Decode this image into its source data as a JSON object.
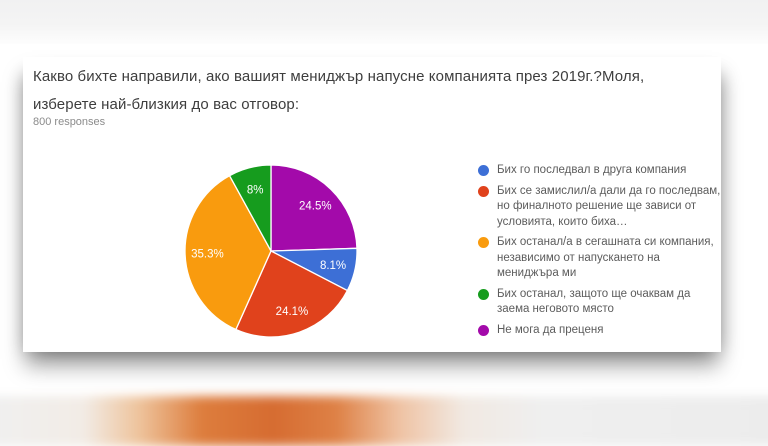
{
  "card": {
    "title": "Какво бихте направили, ако вашият мениджър напусне компанията през 2019г.?Моля, изберете най-близкия до вас отговор:",
    "responses_label": "800 responses"
  },
  "chart_data": {
    "type": "pie",
    "title": "Какво бихте направили, ако вашият мениджър напусне компанията през 2019г.?Моля, изберете най-близкия до вас отговор:",
    "subtitle": "800 responses",
    "categories": [
      "Бих го последвал в друга компания",
      "Бих се замислил/а дали да го последвам, но финалното решение ще зависи от условията, които биха…",
      "Бих останал/а в сегашната си компания, независимо от напускането на мениджъра ми",
      "Бих останал, защото ще очаквам да заема неговото място",
      "Не мога да преценя"
    ],
    "values": [
      8.1,
      24.1,
      35.3,
      8.0,
      24.5
    ],
    "slice_labels": [
      "8.1%",
      "24.1%",
      "35.3%",
      "8%",
      "24.5%"
    ],
    "colors": [
      "#3D6FD6",
      "#E0421C",
      "#F99B0E",
      "#169C1E",
      "#A30AAA"
    ],
    "legend_position": "right",
    "draw_order": [
      4,
      0,
      1,
      2,
      3
    ],
    "label_radius_factor": 0.74,
    "slice_stroke_color": "#ffffff"
  }
}
